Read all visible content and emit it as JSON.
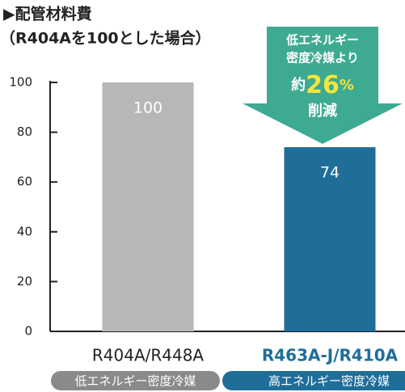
{
  "chart_data": {
    "type": "bar",
    "title": "▶配管材料費",
    "subtitle": "（R404Aを100とした場合）",
    "categories": [
      "R404A/R448A",
      "R463A-J/R410A"
    ],
    "category_colors": [
      "#222222",
      "#1f6e9a"
    ],
    "sublabels": [
      "低エネルギー密度冷媒",
      "高エネルギー密度冷媒"
    ],
    "sublabel_colors": [
      "#8a8a8a",
      "#1f6e9a"
    ],
    "values": [
      100,
      74
    ],
    "colors": [
      "#b7b7b7",
      "#1f6e9a"
    ],
    "ylim": [
      0,
      100
    ],
    "yticks": [
      0,
      20,
      40,
      60,
      80,
      100
    ],
    "annotation": {
      "lines": [
        "低エネルギー",
        "密度冷媒より"
      ],
      "prefix": "約",
      "number": "26",
      "unit": "%",
      "suffix": "削減",
      "color": "#3eaa92"
    }
  }
}
